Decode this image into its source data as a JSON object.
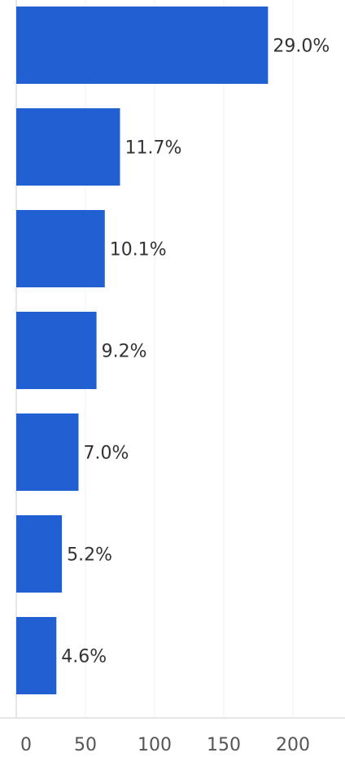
{
  "chart_data": {
    "type": "bar",
    "orientation": "horizontal",
    "categories": [
      "",
      "",
      "",
      "",
      "",
      "",
      ""
    ],
    "series": [
      {
        "values": [
          182,
          75,
          64,
          58,
          45,
          33,
          29
        ],
        "data_labels": [
          "29.0%",
          "11.7%",
          "10.1%",
          "9.2%",
          "7.0%",
          "5.2%",
          "4.6%"
        ]
      }
    ],
    "xlim": [
      0,
      240
    ],
    "x_ticks": [
      0,
      50,
      100,
      150,
      200
    ],
    "x_tick_labels": [
      "0",
      "50",
      "100",
      "150",
      "200"
    ],
    "title": "",
    "xlabel": "",
    "ylabel": "",
    "grid": "vertical",
    "legend": "none",
    "colors": {
      "bar": "#2160D3",
      "grid": "#F2F2F2",
      "axis": "#CCCCCC",
      "text": "#333333"
    }
  }
}
